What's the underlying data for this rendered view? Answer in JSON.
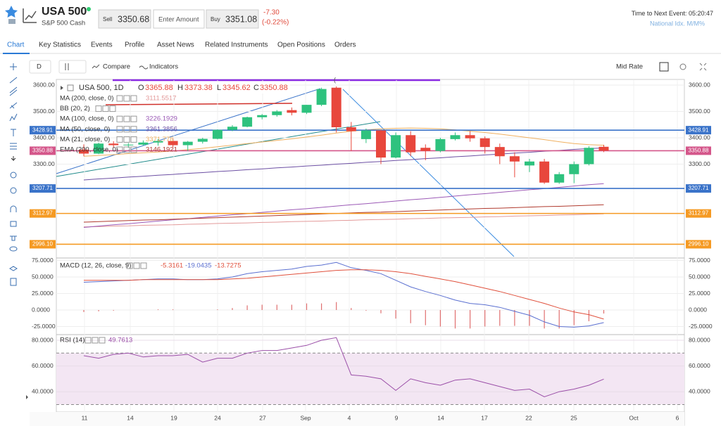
{
  "header": {
    "symbol": "USA 500",
    "name": "S&P 500 Cash",
    "sell_label": "Sell",
    "sell": "3350.68",
    "amount_placeholder": "Enter Amount",
    "buy_label": "Buy",
    "buy": "3351.08",
    "change": "-7.30",
    "change_pct": "(-0.22%)",
    "next_event_label": "Time to Next Event:",
    "next_event_time": "05:20:47",
    "next_event_name": "National Idx. M/M%"
  },
  "tabs": [
    "Chart",
    "Key Statistics",
    "Events",
    "Profile",
    "Asset News",
    "Related Instruments",
    "Open Positions",
    "Orders"
  ],
  "toolbar": {
    "interval": "D",
    "compare": "Compare",
    "indicators": "Indicators",
    "rate": "Mid Rate"
  },
  "chart": {
    "legend": {
      "title": "USA 500, 1D",
      "o_label": "O",
      "o": "3365.88",
      "h_label": "H",
      "h": "3373.38",
      "l_label": "L",
      "l": "3345.62",
      "c_label": "C",
      "c": "3350.88"
    },
    "price_ticks": [
      {
        "value": 3600,
        "label": "3600.00"
      },
      {
        "value": 3500,
        "label": "3500.00"
      },
      {
        "value": 3400,
        "label": "3400.00"
      },
      {
        "value": 3300,
        "label": "3300.00"
      }
    ],
    "levels": [
      {
        "value": 3428.91,
        "label": "3428.91",
        "color": "#3a73c9"
      },
      {
        "value": 3350.88,
        "label": "3350.88",
        "color": "#d4568a"
      },
      {
        "value": 3207.71,
        "label": "3207.71",
        "color": "#3a73c9"
      },
      {
        "value": 3112.97,
        "label": "3112.97",
        "color": "#f59a23"
      },
      {
        "value": 2996.1,
        "label": "2996.10",
        "color": "#f59a23"
      }
    ],
    "x_labels": [
      "11",
      "14",
      "19",
      "24",
      "27",
      "Sep",
      "4",
      "9",
      "14",
      "17",
      "22",
      "25",
      "Oct",
      "6"
    ],
    "candles": [
      {
        "o": 3355,
        "h": 3375,
        "l": 3330,
        "c": 3340
      },
      {
        "o": 3340,
        "h": 3382,
        "l": 3338,
        "c": 3378
      },
      {
        "o": 3378,
        "h": 3387,
        "l": 3362,
        "c": 3372
      },
      {
        "o": 3372,
        "h": 3380,
        "l": 3362,
        "c": 3374
      },
      {
        "o": 3374,
        "h": 3390,
        "l": 3370,
        "c": 3382
      },
      {
        "o": 3382,
        "h": 3395,
        "l": 3370,
        "c": 3388
      },
      {
        "o": 3388,
        "h": 3398,
        "l": 3365,
        "c": 3372
      },
      {
        "o": 3372,
        "h": 3388,
        "l": 3350,
        "c": 3385
      },
      {
        "o": 3385,
        "h": 3400,
        "l": 3378,
        "c": 3396
      },
      {
        "o": 3396,
        "h": 3432,
        "l": 3394,
        "c": 3430
      },
      {
        "o": 3430,
        "h": 3448,
        "l": 3425,
        "c": 3442
      },
      {
        "o": 3442,
        "h": 3480,
        "l": 3440,
        "c": 3478
      },
      {
        "o": 3478,
        "h": 3490,
        "l": 3470,
        "c": 3486
      },
      {
        "o": 3486,
        "h": 3505,
        "l": 3480,
        "c": 3500
      },
      {
        "o": 3505,
        "h": 3515,
        "l": 3485,
        "c": 3495
      },
      {
        "o": 3495,
        "h": 3525,
        "l": 3490,
        "c": 3525
      },
      {
        "o": 3525,
        "h": 3590,
        "l": 3520,
        "c": 3585
      },
      {
        "o": 3590,
        "h": 3595,
        "l": 3420,
        "c": 3440
      },
      {
        "o": 3440,
        "h": 3460,
        "l": 3350,
        "c": 3425
      },
      {
        "o": 3395,
        "h": 3435,
        "l": 3380,
        "c": 3428
      },
      {
        "o": 3428,
        "h": 3430,
        "l": 3300,
        "c": 3325
      },
      {
        "o": 3325,
        "h": 3420,
        "l": 3322,
        "c": 3410
      },
      {
        "o": 3410,
        "h": 3425,
        "l": 3330,
        "c": 3345
      },
      {
        "o": 3362,
        "h": 3375,
        "l": 3315,
        "c": 3350
      },
      {
        "o": 3350,
        "h": 3400,
        "l": 3345,
        "c": 3395
      },
      {
        "o": 3395,
        "h": 3420,
        "l": 3390,
        "c": 3410
      },
      {
        "o": 3410,
        "h": 3425,
        "l": 3385,
        "c": 3398
      },
      {
        "o": 3398,
        "h": 3405,
        "l": 3340,
        "c": 3365
      },
      {
        "o": 3365,
        "h": 3378,
        "l": 3300,
        "c": 3330
      },
      {
        "o": 3330,
        "h": 3345,
        "l": 3250,
        "c": 3310
      },
      {
        "o": 3295,
        "h": 3320,
        "l": 3270,
        "c": 3310
      },
      {
        "o": 3310,
        "h": 3320,
        "l": 3225,
        "c": 3230
      },
      {
        "o": 3230,
        "h": 3270,
        "l": 3225,
        "c": 3262
      },
      {
        "o": 3262,
        "h": 3310,
        "l": 3228,
        "c": 3300
      },
      {
        "o": 3300,
        "h": 3368,
        "l": 3295,
        "c": 3362
      },
      {
        "o": 3365.88,
        "h": 3373.38,
        "l": 3345.62,
        "c": 3350.88
      }
    ],
    "overlays": [
      {
        "name": "MA (200, close, 0)",
        "value_label": "3111.5517",
        "color": "#e39a9a",
        "values": [
          3062,
          3063,
          3065,
          3066,
          3068,
          3069,
          3070,
          3072,
          3073,
          3075,
          3076,
          3077,
          3079,
          3080,
          3082,
          3083,
          3084,
          3086,
          3087,
          3089,
          3090,
          3091,
          3093,
          3094,
          3096,
          3097,
          3098,
          3100,
          3101,
          3103,
          3104,
          3105,
          3107,
          3108,
          3110,
          3111.5517
        ]
      },
      {
        "name": "BB (20, 2)",
        "value_label": null,
        "color": "#5b9bd5",
        "values": null
      },
      {
        "name": "MA (100, close, 0)",
        "value_label": "3226.1929",
        "color": "#9b59b6",
        "values": [
          3060,
          3065,
          3070,
          3074,
          3079,
          3084,
          3089,
          3093,
          3098,
          3103,
          3108,
          3112,
          3117,
          3122,
          3127,
          3131,
          3136,
          3141,
          3146,
          3150,
          3155,
          3160,
          3165,
          3169,
          3174,
          3179,
          3184,
          3188,
          3193,
          3198,
          3203,
          3207,
          3212,
          3217,
          3222,
          3226.1929
        ]
      },
      {
        "name": "MA (50, close, 0)",
        "value_label": "3361.3856",
        "color": "#6c4fa3",
        "values": [
          3240,
          3244,
          3247,
          3251,
          3254,
          3258,
          3261,
          3265,
          3268,
          3272,
          3275,
          3279,
          3282,
          3286,
          3289,
          3293,
          3296,
          3300,
          3303,
          3307,
          3310,
          3314,
          3317,
          3321,
          3324,
          3328,
          3331,
          3335,
          3338,
          3342,
          3345,
          3349,
          3352,
          3356,
          3359,
          3361.3856
        ]
      },
      {
        "name": "MA (21, close, 0)",
        "value_label": "3371.776",
        "color": "#f0b060",
        "values": [
          3330,
          3333,
          3336,
          3340,
          3343,
          3346,
          3350,
          3355,
          3360,
          3366,
          3372,
          3378,
          3384,
          3390,
          3396,
          3403,
          3410,
          3418,
          3425,
          3430,
          3434,
          3436,
          3437,
          3436,
          3434,
          3430,
          3425,
          3420,
          3414,
          3407,
          3400,
          3393,
          3385,
          3378,
          3374,
          3371.776
        ]
      },
      {
        "name": "EMA (200, close, 0)",
        "value_label": "3146.1921",
        "color": "#b03a2e",
        "values": [
          3080,
          3082,
          3084,
          3086,
          3088,
          3089,
          3091,
          3093,
          3095,
          3097,
          3099,
          3101,
          3103,
          3105,
          3107,
          3109,
          3111,
          3113,
          3115,
          3117,
          3118,
          3120,
          3122,
          3124,
          3126,
          3128,
          3130,
          3132,
          3133,
          3135,
          3137,
          3139,
          3140,
          3142,
          3144,
          3146.1921
        ]
      }
    ],
    "macd": {
      "name": "MACD (12, 26, close, 9)",
      "hist_label": "-5.3161",
      "macd_label": "-19.0435",
      "signal_label": "-13.7275",
      "ticks": [
        {
          "value": 75,
          "label": "75.0000"
        },
        {
          "value": 50,
          "label": "50.0000"
        },
        {
          "value": 25,
          "label": "25.0000"
        },
        {
          "value": 0,
          "label": "0.0000"
        },
        {
          "value": -25,
          "label": "-25.0000"
        }
      ],
      "hist": [
        -3,
        -2,
        -1,
        0,
        0,
        1,
        1,
        0,
        0,
        1,
        3,
        7,
        8,
        8,
        8,
        10,
        10,
        12,
        3,
        -1,
        -5,
        -13,
        -20,
        -23,
        -25,
        -28,
        -28,
        -25,
        -24,
        -24,
        -24,
        -28,
        -28,
        -23,
        -17,
        -5.3161
      ],
      "macd": [
        42,
        43,
        44,
        45,
        46,
        47,
        47,
        46,
        46,
        47,
        50,
        55,
        58,
        60,
        62,
        66,
        68,
        72,
        64,
        60,
        55,
        45,
        35,
        28,
        22,
        15,
        10,
        8,
        4,
        -2,
        -8,
        -18,
        -25,
        -26,
        -24,
        -19.0435
      ],
      "signal": [
        45,
        45,
        45,
        45,
        46,
        46,
        46,
        46,
        46,
        46,
        47,
        48,
        50,
        52,
        54,
        56,
        58,
        60,
        61,
        61,
        60,
        58,
        55,
        51,
        47,
        43,
        38,
        33,
        28,
        22,
        16,
        10,
        3,
        -3,
        -7,
        -13.7275
      ]
    },
    "rsi": {
      "name": "RSI (14)",
      "value_label": "49.7613",
      "levels": [
        70,
        30
      ],
      "ticks": [
        {
          "value": 80,
          "label": "80.0000"
        },
        {
          "value": 60,
          "label": "60.0000"
        },
        {
          "value": 40,
          "label": "40.0000"
        }
      ],
      "values": [
        68,
        66,
        69,
        70,
        67,
        68,
        68,
        69,
        63,
        66,
        66,
        70,
        72,
        72,
        74,
        76,
        80,
        82,
        53,
        52,
        50,
        41,
        50,
        47,
        45,
        49,
        50,
        47,
        44,
        41,
        42,
        36,
        40,
        42,
        45,
        49.7613
      ]
    }
  }
}
